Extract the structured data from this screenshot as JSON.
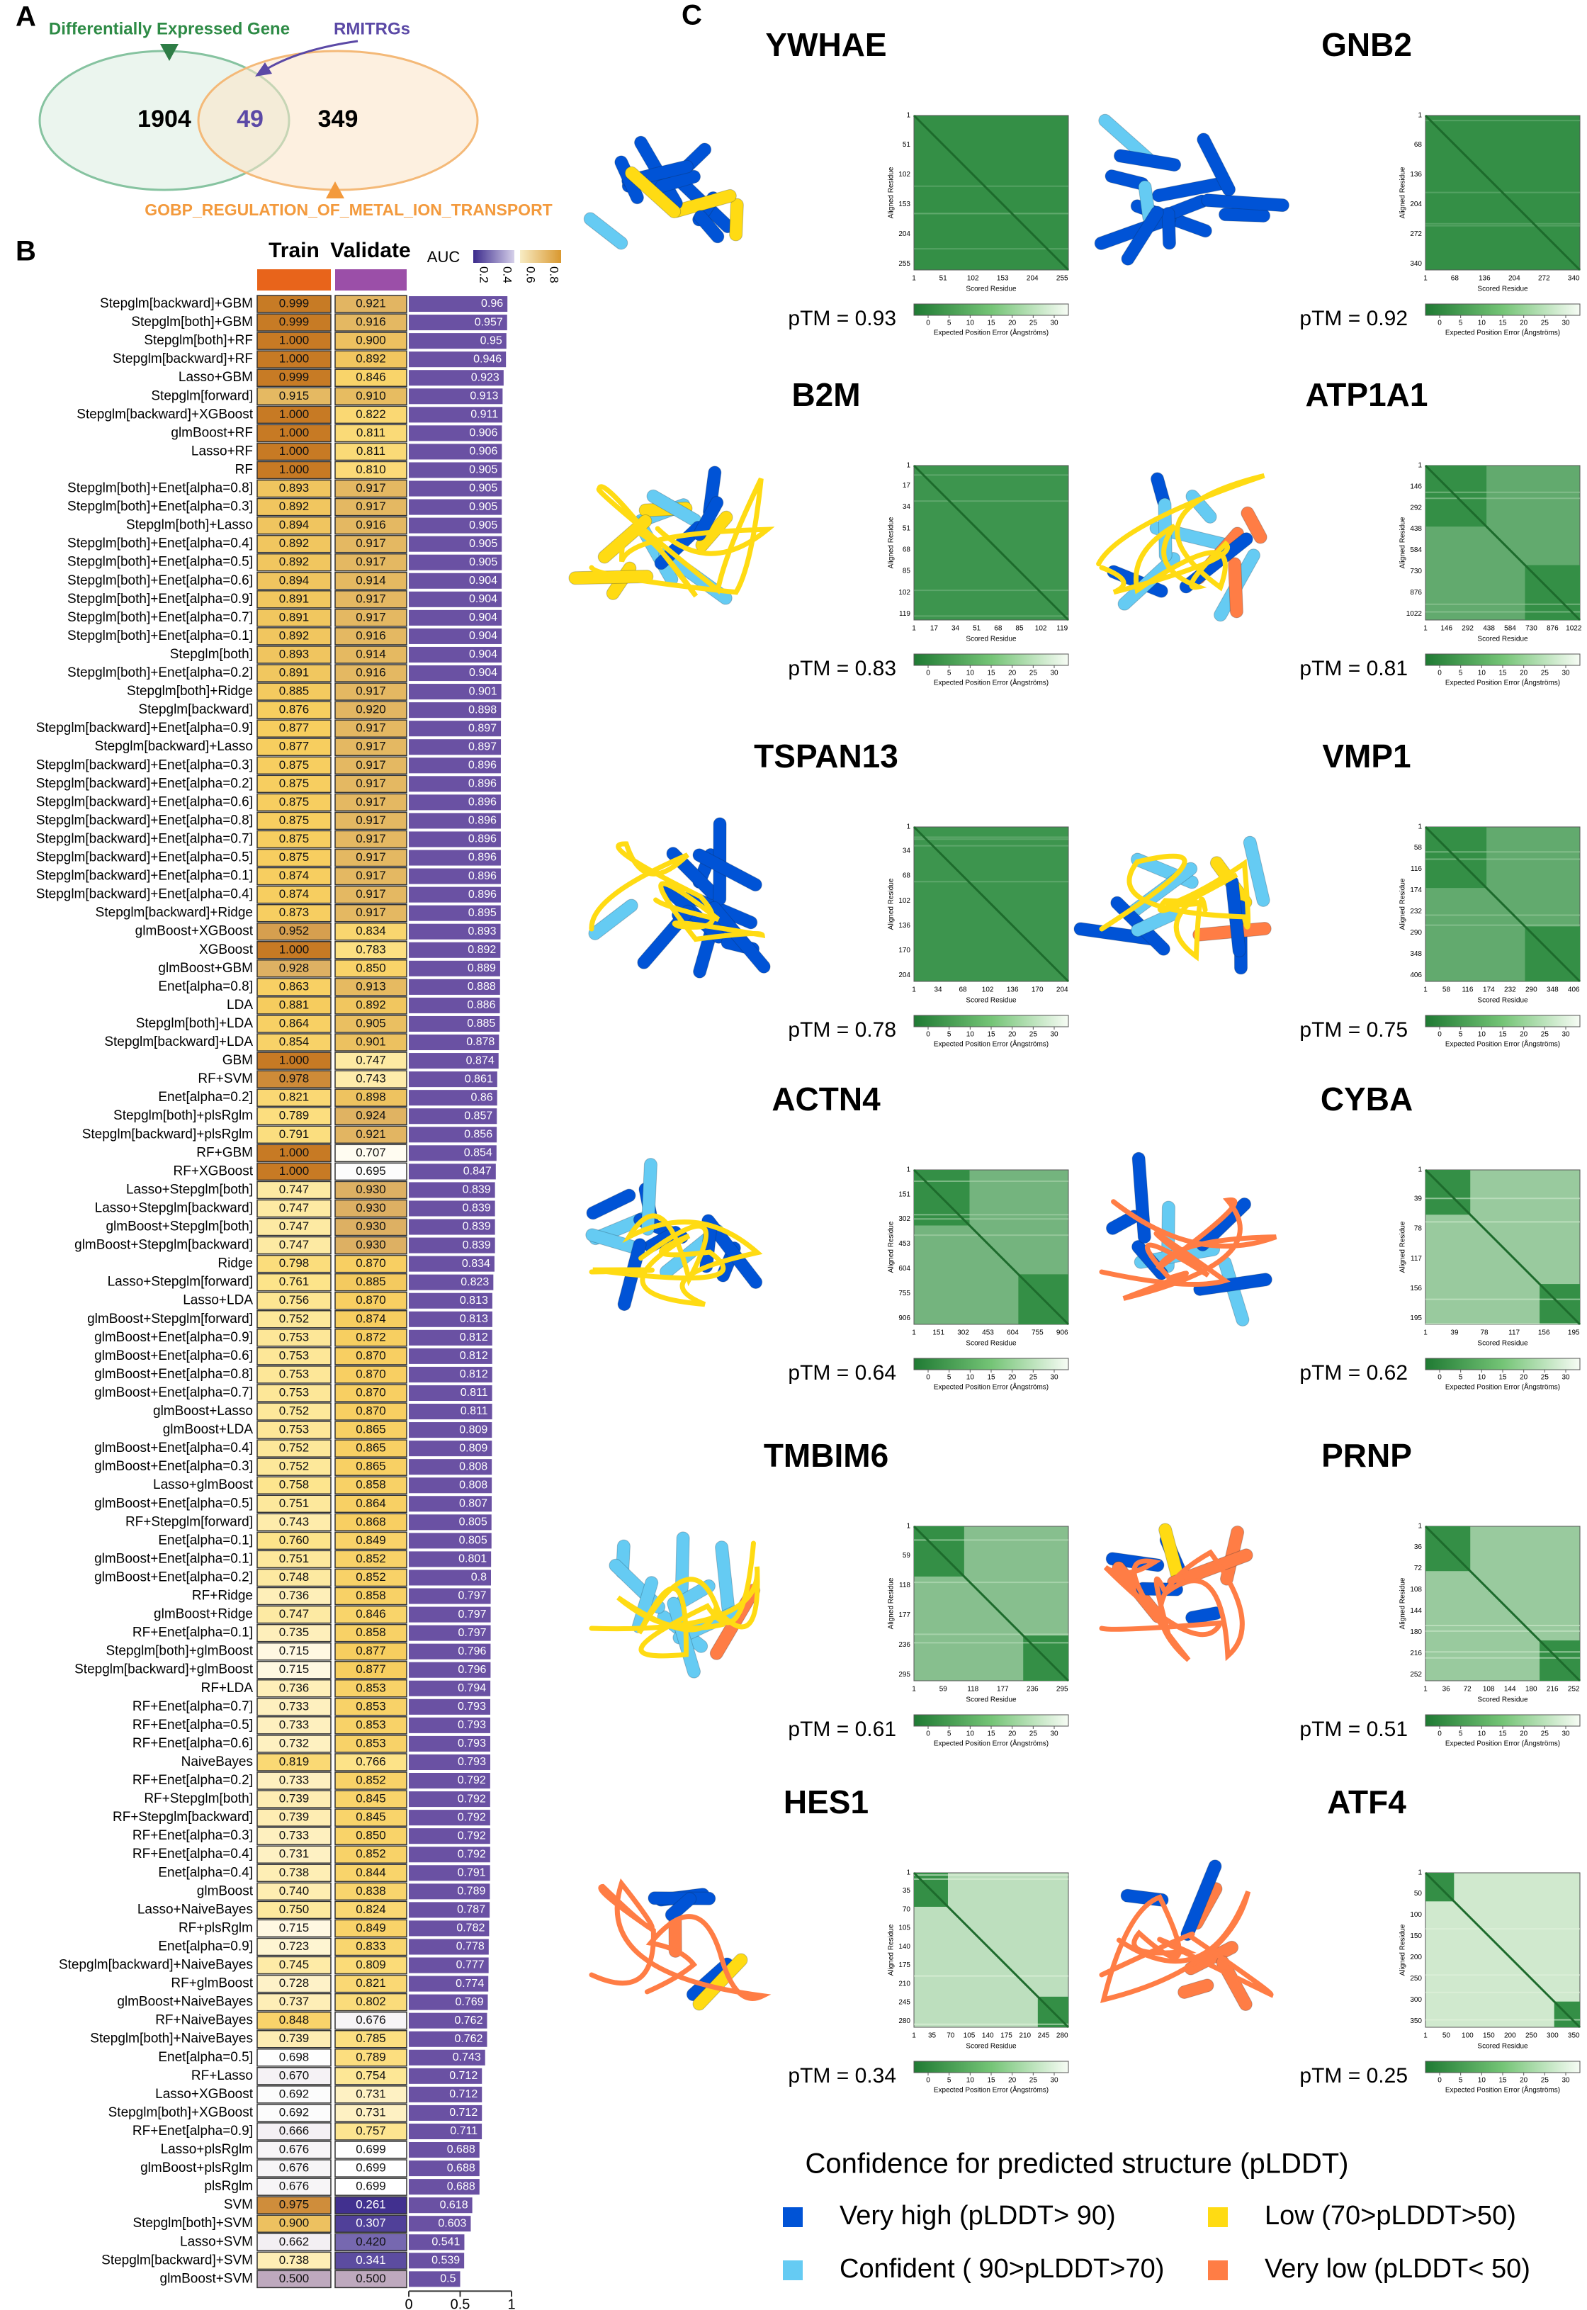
{
  "panel_a": {
    "label": "A",
    "left_label": "Differentially Expressed Gene",
    "top_label": "RMITRGs",
    "left_only": "1904",
    "overlap": "49",
    "right_only": "349",
    "right_label": "GOBP_REGULATION_OF_METAL_ION_TRANSPORT"
  },
  "panel_b": {
    "label": "B",
    "train_title": "Train",
    "validate_title": "Validate",
    "auc_title": "AUC",
    "colorbar_ticks": [
      0.2,
      0.4,
      0.6,
      0.8
    ],
    "auc_ticks": [
      0,
      0.5,
      1
    ],
    "rows": [
      [
        "Stepglm[backward]+GBM",
        "0.999",
        "0.921",
        0.96
      ],
      [
        "Stepglm[both]+GBM",
        "0.999",
        "0.916",
        0.957
      ],
      [
        "Stepglm[both]+RF",
        "1.000",
        "0.900",
        0.95
      ],
      [
        "Stepglm[backward]+RF",
        "1.000",
        "0.892",
        0.946
      ],
      [
        "Lasso+GBM",
        "0.999",
        "0.846",
        0.923
      ],
      [
        "Stepglm[forward]",
        "0.915",
        "0.910",
        0.913
      ],
      [
        "Stepglm[backward]+XGBoost",
        "1.000",
        "0.822",
        0.911
      ],
      [
        "glmBoost+RF",
        "1.000",
        "0.811",
        0.906
      ],
      [
        "Lasso+RF",
        "1.000",
        "0.811",
        0.906
      ],
      [
        "RF",
        "1.000",
        "0.810",
        0.905
      ],
      [
        "Stepglm[both]+Enet[alpha=0.8]",
        "0.893",
        "0.917",
        0.905
      ],
      [
        "Stepglm[both]+Enet[alpha=0.3]",
        "0.892",
        "0.917",
        0.905
      ],
      [
        "Stepglm[both]+Lasso",
        "0.894",
        "0.916",
        0.905
      ],
      [
        "Stepglm[both]+Enet[alpha=0.4]",
        "0.892",
        "0.917",
        0.905
      ],
      [
        "Stepglm[both]+Enet[alpha=0.5]",
        "0.892",
        "0.917",
        0.905
      ],
      [
        "Stepglm[both]+Enet[alpha=0.6]",
        "0.894",
        "0.914",
        0.904
      ],
      [
        "Stepglm[both]+Enet[alpha=0.9]",
        "0.891",
        "0.917",
        0.904
      ],
      [
        "Stepglm[both]+Enet[alpha=0.7]",
        "0.891",
        "0.917",
        0.904
      ],
      [
        "Stepglm[both]+Enet[alpha=0.1]",
        "0.892",
        "0.916",
        0.904
      ],
      [
        "Stepglm[both]",
        "0.893",
        "0.914",
        0.904
      ],
      [
        "Stepglm[both]+Enet[alpha=0.2]",
        "0.891",
        "0.916",
        0.904
      ],
      [
        "Stepglm[both]+Ridge",
        "0.885",
        "0.917",
        0.901
      ],
      [
        "Stepglm[backward]",
        "0.876",
        "0.920",
        0.898
      ],
      [
        "Stepglm[backward]+Enet[alpha=0.9]",
        "0.877",
        "0.917",
        0.897
      ],
      [
        "Stepglm[backward]+Lasso",
        "0.877",
        "0.917",
        0.897
      ],
      [
        "Stepglm[backward]+Enet[alpha=0.3]",
        "0.875",
        "0.917",
        0.896
      ],
      [
        "Stepglm[backward]+Enet[alpha=0.2]",
        "0.875",
        "0.917",
        0.896
      ],
      [
        "Stepglm[backward]+Enet[alpha=0.6]",
        "0.875",
        "0.917",
        0.896
      ],
      [
        "Stepglm[backward]+Enet[alpha=0.8]",
        "0.875",
        "0.917",
        0.896
      ],
      [
        "Stepglm[backward]+Enet[alpha=0.7]",
        "0.875",
        "0.917",
        0.896
      ],
      [
        "Stepglm[backward]+Enet[alpha=0.5]",
        "0.875",
        "0.917",
        0.896
      ],
      [
        "Stepglm[backward]+Enet[alpha=0.1]",
        "0.874",
        "0.917",
        0.896
      ],
      [
        "Stepglm[backward]+Enet[alpha=0.4]",
        "0.874",
        "0.917",
        0.896
      ],
      [
        "Stepglm[backward]+Ridge",
        "0.873",
        "0.917",
        0.895
      ],
      [
        "glmBoost+XGBoost",
        "0.952",
        "0.834",
        0.893
      ],
      [
        "XGBoost",
        "1.000",
        "0.783",
        0.892
      ],
      [
        "glmBoost+GBM",
        "0.928",
        "0.850",
        0.889
      ],
      [
        "Enet[alpha=0.8]",
        "0.863",
        "0.913",
        0.888
      ],
      [
        "LDA",
        "0.881",
        "0.892",
        0.886
      ],
      [
        "Stepglm[both]+LDA",
        "0.864",
        "0.905",
        0.885
      ],
      [
        "Stepglm[backward]+LDA",
        "0.854",
        "0.901",
        0.878
      ],
      [
        "GBM",
        "1.000",
        "0.747",
        0.874
      ],
      [
        "RF+SVM",
        "0.978",
        "0.743",
        0.861
      ],
      [
        "Enet[alpha=0.2]",
        "0.821",
        "0.898",
        0.86
      ],
      [
        "Stepglm[both]+plsRglm",
        "0.789",
        "0.924",
        0.857
      ],
      [
        "Stepglm[backward]+plsRglm",
        "0.791",
        "0.921",
        0.856
      ],
      [
        "RF+GBM",
        "1.000",
        "0.707",
        0.854
      ],
      [
        "RF+XGBoost",
        "1.000",
        "0.695",
        0.847
      ],
      [
        "Lasso+Stepglm[both]",
        "0.747",
        "0.930",
        0.839
      ],
      [
        "Lasso+Stepglm[backward]",
        "0.747",
        "0.930",
        0.839
      ],
      [
        "glmBoost+Stepglm[both]",
        "0.747",
        "0.930",
        0.839
      ],
      [
        "glmBoost+Stepglm[backward]",
        "0.747",
        "0.930",
        0.839
      ],
      [
        "Ridge",
        "0.798",
        "0.870",
        0.834
      ],
      [
        "Lasso+Stepglm[forward]",
        "0.761",
        "0.885",
        0.823
      ],
      [
        "Lasso+LDA",
        "0.756",
        "0.870",
        0.813
      ],
      [
        "glmBoost+Stepglm[forward]",
        "0.752",
        "0.874",
        0.813
      ],
      [
        "glmBoost+Enet[alpha=0.9]",
        "0.753",
        "0.872",
        0.812
      ],
      [
        "glmBoost+Enet[alpha=0.6]",
        "0.753",
        "0.870",
        0.812
      ],
      [
        "glmBoost+Enet[alpha=0.8]",
        "0.753",
        "0.870",
        0.812
      ],
      [
        "glmBoost+Enet[alpha=0.7]",
        "0.753",
        "0.870",
        0.811
      ],
      [
        "glmBoost+Lasso",
        "0.752",
        "0.870",
        0.811
      ],
      [
        "glmBoost+LDA",
        "0.753",
        "0.865",
        0.809
      ],
      [
        "glmBoost+Enet[alpha=0.4]",
        "0.752",
        "0.865",
        0.809
      ],
      [
        "glmBoost+Enet[alpha=0.3]",
        "0.752",
        "0.865",
        0.808
      ],
      [
        "Lasso+glmBoost",
        "0.758",
        "0.858",
        0.808
      ],
      [
        "glmBoost+Enet[alpha=0.5]",
        "0.751",
        "0.864",
        0.807
      ],
      [
        "RF+Stepglm[forward]",
        "0.743",
        "0.868",
        0.805
      ],
      [
        "Enet[alpha=0.1]",
        "0.760",
        "0.849",
        0.805
      ],
      [
        "glmBoost+Enet[alpha=0.1]",
        "0.751",
        "0.852",
        0.801
      ],
      [
        "glmBoost+Enet[alpha=0.2]",
        "0.748",
        "0.852",
        0.8
      ],
      [
        "RF+Ridge",
        "0.736",
        "0.858",
        0.797
      ],
      [
        "glmBoost+Ridge",
        "0.747",
        "0.846",
        0.797
      ],
      [
        "RF+Enet[alpha=0.1]",
        "0.735",
        "0.858",
        0.797
      ],
      [
        "Stepglm[both]+glmBoost",
        "0.715",
        "0.877",
        0.796
      ],
      [
        "Stepglm[backward]+glmBoost",
        "0.715",
        "0.877",
        0.796
      ],
      [
        "RF+LDA",
        "0.736",
        "0.853",
        0.794
      ],
      [
        "RF+Enet[alpha=0.7]",
        "0.733",
        "0.853",
        0.793
      ],
      [
        "RF+Enet[alpha=0.5]",
        "0.733",
        "0.853",
        0.793
      ],
      [
        "RF+Enet[alpha=0.6]",
        "0.732",
        "0.853",
        0.793
      ],
      [
        "NaiveBayes",
        "0.819",
        "0.766",
        0.793
      ],
      [
        "RF+Enet[alpha=0.2]",
        "0.733",
        "0.852",
        0.792
      ],
      [
        "RF+Stepglm[both]",
        "0.739",
        "0.845",
        0.792
      ],
      [
        "RF+Stepglm[backward]",
        "0.739",
        "0.845",
        0.792
      ],
      [
        "RF+Enet[alpha=0.3]",
        "0.733",
        "0.850",
        0.792
      ],
      [
        "RF+Enet[alpha=0.4]",
        "0.731",
        "0.852",
        0.792
      ],
      [
        "Enet[alpha=0.4]",
        "0.738",
        "0.844",
        0.791
      ],
      [
        "glmBoost",
        "0.740",
        "0.838",
        0.789
      ],
      [
        "Lasso+NaiveBayes",
        "0.750",
        "0.824",
        0.787
      ],
      [
        "RF+plsRglm",
        "0.715",
        "0.849",
        0.782
      ],
      [
        "Enet[alpha=0.9]",
        "0.723",
        "0.833",
        0.778
      ],
      [
        "Stepglm[backward]+NaiveBayes",
        "0.745",
        "0.809",
        0.777
      ],
      [
        "RF+glmBoost",
        "0.728",
        "0.821",
        0.774
      ],
      [
        "glmBoost+NaiveBayes",
        "0.737",
        "0.802",
        0.769
      ],
      [
        "RF+NaiveBayes",
        "0.848",
        "0.676",
        0.762
      ],
      [
        "Stepglm[both]+NaiveBayes",
        "0.739",
        "0.785",
        0.762
      ],
      [
        "Enet[alpha=0.5]",
        "0.698",
        "0.789",
        0.743
      ],
      [
        "RF+Lasso",
        "0.670",
        "0.754",
        0.712
      ],
      [
        "Lasso+XGBoost",
        "0.692",
        "0.731",
        0.712
      ],
      [
        "Stepglm[both]+XGBoost",
        "0.692",
        "0.731",
        0.712
      ],
      [
        "RF+Enet[alpha=0.9]",
        "0.666",
        "0.757",
        0.711
      ],
      [
        "Lasso+plsRglm",
        "0.676",
        "0.699",
        0.688
      ],
      [
        "glmBoost+plsRglm",
        "0.676",
        "0.699",
        0.688
      ],
      [
        "plsRglm",
        "0.676",
        "0.699",
        0.688
      ],
      [
        "SVM",
        "0.975",
        "0.261",
        0.618
      ],
      [
        "Stepglm[both]+SVM",
        "0.900",
        "0.307",
        0.603
      ],
      [
        "Lasso+SVM",
        "0.662",
        "0.420",
        0.541
      ],
      [
        "Stepglm[backward]+SVM",
        "0.738",
        "0.341",
        0.539
      ],
      [
        "glmBoost+SVM",
        "0.500",
        "0.500",
        0.5
      ]
    ]
  },
  "panel_c": {
    "label": "C",
    "aligned_label": "Aligned Residue",
    "scored_label": "Scored Residue",
    "pae_label": "Expected Position Error (Ångströms)",
    "pae_ticks": [
      0,
      5,
      10,
      15,
      20,
      25,
      30
    ],
    "proteins": [
      {
        "name": "YWHAE",
        "ptm": "pTM = 0.93",
        "ticks": [
          1,
          51,
          102,
          153,
          204,
          255
        ]
      },
      {
        "name": "GNB2",
        "ptm": "pTM = 0.92",
        "ticks": [
          1,
          68,
          136,
          204,
          272,
          340
        ]
      },
      {
        "name": "B2M",
        "ptm": "pTM = 0.83",
        "ticks": [
          1,
          17,
          34,
          51,
          68,
          85,
          102,
          119
        ]
      },
      {
        "name": "ATP1A1",
        "ptm": "pTM = 0.81",
        "ticks": [
          1,
          146,
          292,
          438,
          584,
          730,
          876,
          1022
        ]
      },
      {
        "name": "TSPAN13",
        "ptm": "pTM = 0.78",
        "ticks": [
          1,
          34,
          68,
          102,
          136,
          170,
          204
        ]
      },
      {
        "name": "VMP1",
        "ptm": "pTM = 0.75",
        "ticks": [
          1,
          58,
          116,
          174,
          232,
          290,
          348,
          406
        ]
      },
      {
        "name": "ACTN4",
        "ptm": "pTM = 0.64",
        "ticks": [
          1,
          151,
          302,
          453,
          604,
          755,
          906
        ]
      },
      {
        "name": "CYBA",
        "ptm": "pTM = 0.62",
        "ticks": [
          1,
          39,
          78,
          117,
          156,
          195
        ]
      },
      {
        "name": "TMBIM6",
        "ptm": "pTM = 0.61",
        "ticks": [
          1,
          59,
          118,
          177,
          236,
          295
        ]
      },
      {
        "name": "PRNP",
        "ptm": "pTM = 0.51",
        "ticks": [
          1,
          36,
          72,
          108,
          144,
          180,
          216,
          252
        ]
      },
      {
        "name": "HES1",
        "ptm": "pTM = 0.34",
        "ticks": [
          1,
          35,
          70,
          105,
          140,
          175,
          210,
          245,
          280
        ]
      },
      {
        "name": "ATF4",
        "ptm": "pTM = 0.25",
        "ticks": [
          1,
          50,
          100,
          150,
          200,
          250,
          300,
          350
        ]
      }
    ],
    "legend": {
      "title": "Confidence for predicted structure (pLDDT)",
      "items": [
        "Very high (pLDDT> 90)",
        "Confident ( 90>pLDDT>70)",
        "Low (70>pLDDT>50)",
        "Very low (pLDDT< 50)"
      ]
    }
  }
}
